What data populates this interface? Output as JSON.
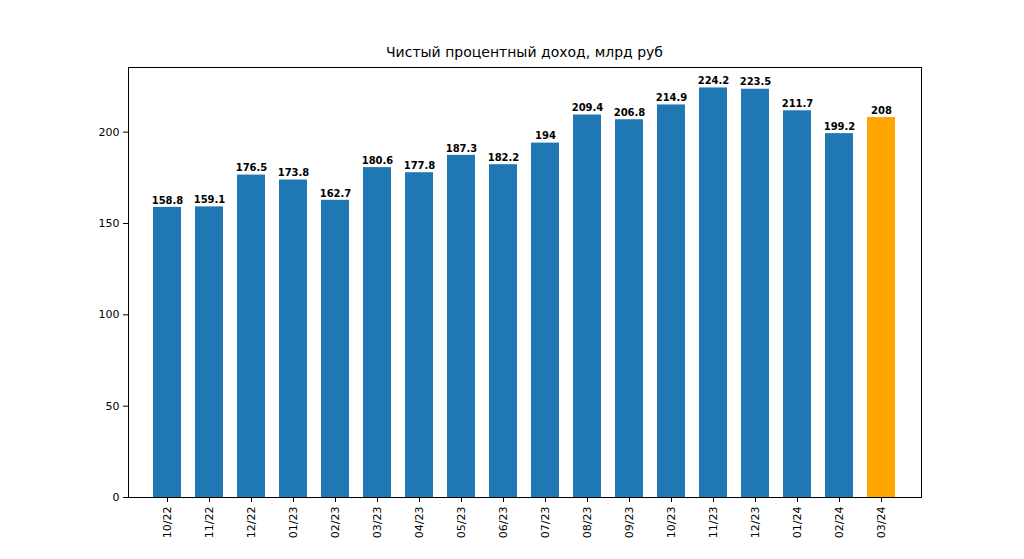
{
  "chart_data": {
    "type": "bar",
    "title": "Чистый процентный доход, млрд руб",
    "categories": [
      "10/22",
      "11/22",
      "12/22",
      "01/23",
      "02/23",
      "03/23",
      "04/23",
      "05/23",
      "06/23",
      "07/23",
      "08/23",
      "09/23",
      "10/23",
      "11/23",
      "12/23",
      "01/24",
      "02/24",
      "03/24"
    ],
    "values": [
      158.8,
      159.1,
      176.5,
      173.8,
      162.7,
      180.6,
      177.8,
      187.3,
      182.2,
      194,
      209.4,
      206.8,
      214.9,
      224.2,
      223.5,
      211.7,
      199.2,
      208
    ],
    "colors": [
      "#1f77b4",
      "#1f77b4",
      "#1f77b4",
      "#1f77b4",
      "#1f77b4",
      "#1f77b4",
      "#1f77b4",
      "#1f77b4",
      "#1f77b4",
      "#1f77b4",
      "#1f77b4",
      "#1f77b4",
      "#1f77b4",
      "#1f77b4",
      "#1f77b4",
      "#1f77b4",
      "#1f77b4",
      "#ffa500"
    ],
    "ylim": [
      0,
      235.4
    ],
    "yticks": [
      0,
      50,
      100,
      150,
      200
    ],
    "grid": false,
    "data_labels": true
  }
}
